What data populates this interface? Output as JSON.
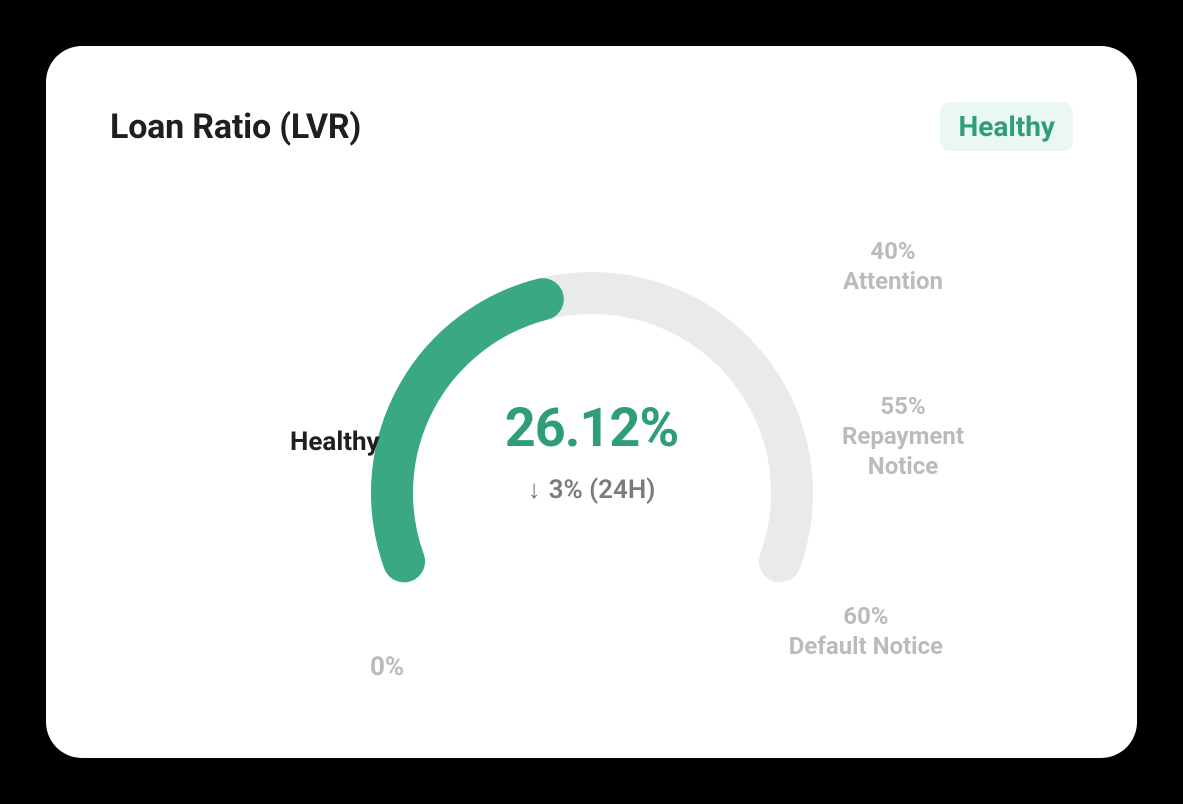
{
  "card": {
    "title": "Loan Ratio (LVR)",
    "background_color": "#ffffff",
    "border_radius": 36,
    "shadow_color": "rgba(0,0,0,0.55)"
  },
  "status_badge": {
    "label": "Healthy",
    "text_color": "#2f9e78",
    "background_color": "#eaf7f2"
  },
  "gauge": {
    "type": "radial-gauge",
    "start_angle_deg": 200,
    "end_angle_deg": -20,
    "value_pct": 26.12,
    "min_pct": 0,
    "max_pct": 60,
    "stroke_width": 42,
    "radius": 200,
    "fill_color": "#3aa981",
    "track_color": "#e9ebeb",
    "gap_deg": 5,
    "segments": [
      {
        "from_pct": 0,
        "to_pct": 40
      },
      {
        "from_pct": 40,
        "to_pct": 55
      },
      {
        "from_pct": 55,
        "to_pct": 60
      }
    ]
  },
  "center": {
    "value_text": "26.12%",
    "value_color": "#2f9e78",
    "delta_arrow": "↓",
    "delta_text": "3% (24H)",
    "delta_color": "#7b7b7b"
  },
  "labels": {
    "healthy": {
      "name": "Healthy",
      "color": "#1f1f1f"
    },
    "zero": {
      "name": "0%",
      "color": "#b9bcbc"
    },
    "attention": {
      "pct": "40%",
      "name": "Attention",
      "color": "#b9bcbc"
    },
    "repayment": {
      "pct": "55%",
      "name": "Repayment Notice",
      "color": "#b9bcbc"
    },
    "default_notice": {
      "pct": "60%",
      "name": "Default Notice",
      "color": "#b9bcbc"
    }
  },
  "typography": {
    "title_fontsize": 34,
    "badge_fontsize": 28,
    "main_pct_fontsize": 54,
    "delta_fontsize": 26,
    "label_fontsize_primary": 26,
    "label_fontsize_secondary": 24
  }
}
